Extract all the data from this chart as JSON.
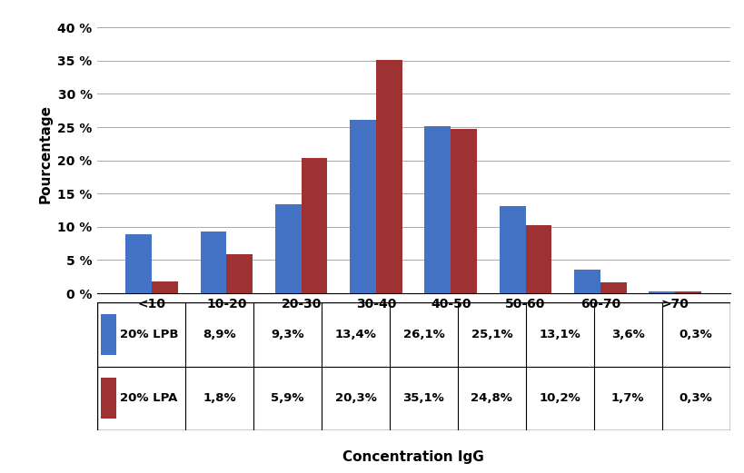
{
  "categories": [
    "<10",
    "10-20",
    "20-30",
    "30-40",
    "40-50",
    "50-60",
    "60-70",
    ">70"
  ],
  "lpb_values": [
    8.9,
    9.3,
    13.4,
    26.1,
    25.1,
    13.1,
    3.6,
    0.3
  ],
  "lpa_values": [
    1.8,
    5.9,
    20.3,
    35.1,
    24.8,
    10.2,
    1.7,
    0.3
  ],
  "lpb_label": "20% LPB",
  "lpa_label": "20% LPA",
  "lpb_color": "#4472C4",
  "lpa_color": "#9E3132",
  "ylabel": "Pourcentage",
  "xlabel": "Concentration IgG",
  "yticks": [
    0,
    5,
    10,
    15,
    20,
    25,
    30,
    35,
    40
  ],
  "ytick_labels": [
    "0 %",
    "5 %",
    "10 %",
    "15 %",
    "20 %",
    "25 %",
    "30 %",
    "35 %",
    "40 %"
  ],
  "ylim": [
    0,
    42
  ],
  "bar_width": 0.35,
  "lpb_row": [
    "8,9%",
    "9,3%",
    "13,4%",
    "26,1%",
    "25,1%",
    "13,1%",
    "3,6%",
    "0,3%"
  ],
  "lpa_row": [
    "1,8%",
    "5,9%",
    "20,3%",
    "35,1%",
    "24,8%",
    "10,2%",
    "1,7%",
    "0,3%"
  ]
}
